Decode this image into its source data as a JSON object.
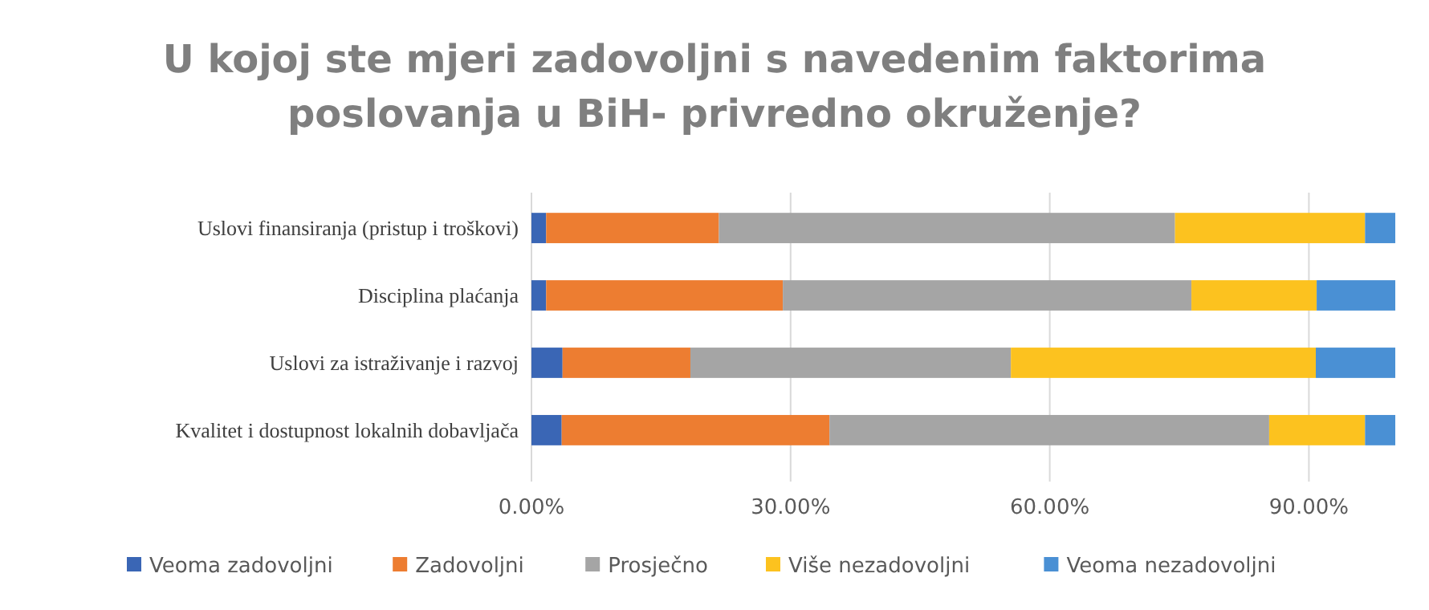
{
  "chart_data": {
    "type": "bar",
    "orientation": "horizontal",
    "stacked": true,
    "title": "U kojoj ste mjeri zadovoljni s navedenim faktorima poslovanja u BiH- privredno okruženje?",
    "categories": [
      "Uslovi finansiranja (pristup i troškovi)",
      "Disciplina plaćanja",
      "Uslovi za istraživanje i razvoj",
      "Kvalitet i dostupnost lokalnih dobavljača"
    ],
    "series": [
      {
        "name": "Veoma zadovoljni",
        "color": "#3a66b5",
        "values": [
          1.7,
          1.7,
          3.6,
          3.5
        ]
      },
      {
        "name": "Zadovoljni",
        "color": "#ed7d31",
        "values": [
          20.0,
          27.4,
          14.8,
          31.0
        ]
      },
      {
        "name": "Prosječno",
        "color": "#a5a5a5",
        "values": [
          52.8,
          47.3,
          37.1,
          50.9
        ]
      },
      {
        "name": "Više nezadovoljni",
        "color": "#fcc21f",
        "values": [
          22.0,
          14.5,
          35.3,
          11.1
        ]
      },
      {
        "name": "Veoma nezadovoljni",
        "color": "#4a90d4",
        "values": [
          3.5,
          9.1,
          9.2,
          3.5
        ]
      }
    ],
    "xlim": [
      0,
      100
    ],
    "xticks": [
      {
        "value": 0,
        "label": "0.00%"
      },
      {
        "value": 30,
        "label": "30.00%"
      },
      {
        "value": 60,
        "label": "60.00%"
      },
      {
        "value": 90,
        "label": "90.00%"
      }
    ],
    "grid": "x",
    "legend": "bottom"
  }
}
